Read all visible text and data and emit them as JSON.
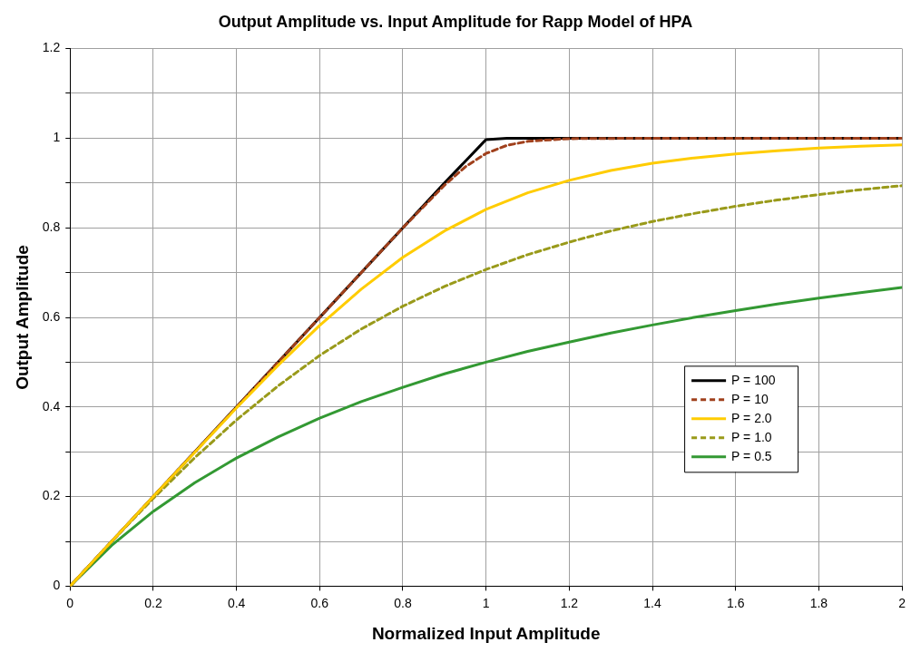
{
  "chart_data": {
    "type": "line",
    "title": "Output Amplitude vs. Input Amplitude for Rapp Model of HPA",
    "xlabel": "Normalized Input Amplitude",
    "ylabel": "Output Amplitude",
    "xlim": [
      0,
      2
    ],
    "xticks": [
      0,
      0.2,
      0.4,
      0.6,
      0.8,
      1,
      1.2,
      1.4,
      1.6,
      1.8,
      2
    ],
    "ylim": [
      0,
      1.2
    ],
    "yticks": [
      0,
      {
        "value": 0.1,
        "label": null
      },
      0.2,
      {
        "value": 0.3,
        "label": null
      },
      0.4,
      {
        "value": 0.5,
        "label": null
      },
      0.6,
      {
        "value": 0.7,
        "label": null
      },
      0.8,
      {
        "value": 0.9,
        "label": null
      },
      1,
      {
        "value": 1.1,
        "label": null
      },
      1.2
    ],
    "grid": true,
    "legend": "right",
    "marker": "none",
    "series": [
      {
        "name": "P = 100",
        "color": "#000000",
        "line_style": "solid",
        "x": [
          0,
          0.9,
          1,
          1.05,
          2
        ],
        "values": [
          0,
          0.9,
          0.997,
          1,
          1
        ]
      },
      {
        "name": "P = 10",
        "color": "#a0401c",
        "line_style": "dashed",
        "x": [
          0,
          0.2,
          0.4,
          0.6,
          0.8,
          0.9,
          0.95,
          1,
          1.05,
          1.1,
          1.2,
          1.4,
          2
        ],
        "values": [
          0,
          0.2,
          0.4,
          0.6,
          0.8,
          0.895,
          0.936,
          0.966,
          0.984,
          0.993,
          0.999,
          1,
          1
        ]
      },
      {
        "name": "P = 2.0",
        "color": "#ffcc00",
        "line_style": "solid",
        "x": [
          0,
          0.1,
          0.2,
          0.3,
          0.4,
          0.5,
          0.6,
          0.7,
          0.8,
          0.9,
          1,
          1.1,
          1.2,
          1.3,
          1.4,
          1.5,
          1.6,
          1.7,
          1.8,
          1.9,
          2
        ],
        "values": [
          0,
          0.1,
          0.2,
          0.299,
          0.398,
          0.493,
          0.582,
          0.663,
          0.734,
          0.793,
          0.841,
          0.878,
          0.906,
          0.928,
          0.944,
          0.956,
          0.965,
          0.972,
          0.978,
          0.982,
          0.985
        ]
      },
      {
        "name": "P = 1.0",
        "color": "#999a1a",
        "line_style": "dashed",
        "x": [
          0,
          0.1,
          0.2,
          0.3,
          0.4,
          0.5,
          0.6,
          0.7,
          0.8,
          0.9,
          1,
          1.1,
          1.2,
          1.3,
          1.4,
          1.5,
          1.6,
          1.7,
          1.8,
          1.9,
          2
        ],
        "values": [
          0,
          0.1,
          0.196,
          0.287,
          0.371,
          0.447,
          0.515,
          0.574,
          0.625,
          0.669,
          0.707,
          0.74,
          0.768,
          0.793,
          0.814,
          0.832,
          0.848,
          0.862,
          0.874,
          0.885,
          0.894
        ]
      },
      {
        "name": "P = 0.5",
        "color": "#339933",
        "line_style": "solid",
        "x": [
          0,
          0.1,
          0.2,
          0.3,
          0.4,
          0.5,
          0.6,
          0.7,
          0.8,
          0.9,
          1,
          1.1,
          1.2,
          1.3,
          1.4,
          1.5,
          1.6,
          1.7,
          1.8,
          1.9,
          2
        ],
        "values": [
          0,
          0.091,
          0.167,
          0.231,
          0.286,
          0.333,
          0.375,
          0.412,
          0.444,
          0.474,
          0.5,
          0.524,
          0.545,
          0.565,
          0.583,
          0.6,
          0.615,
          0.63,
          0.643,
          0.655,
          0.667
        ]
      }
    ]
  }
}
